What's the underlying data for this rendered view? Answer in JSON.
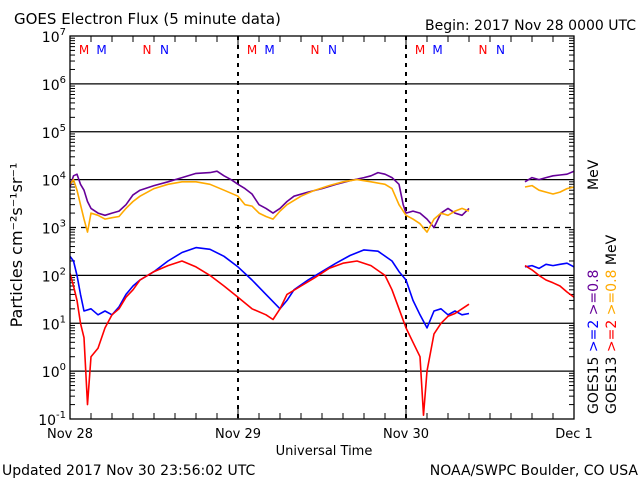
{
  "chart_data": {
    "type": "line",
    "title": "GOES Electron Flux (5 minute data)",
    "begin_label": "Begin: 2017 Nov 28 0000 UTC",
    "xlabel": "Universal Time",
    "ylabel": "Particles cm⁻²s⁻¹sr⁻¹",
    "y_scale": "log",
    "ylim": [
      0.1,
      10000000
    ],
    "xlim": [
      0,
      72
    ],
    "x_ticks": [
      {
        "hour": 0,
        "label": "Nov 28"
      },
      {
        "hour": 24,
        "label": "Nov 29"
      },
      {
        "hour": 48,
        "label": "Nov 30"
      },
      {
        "hour": 72,
        "label": "Dec 1"
      }
    ],
    "y_ticks": [
      {
        "value": 0.1,
        "base": "10",
        "exp": "-1"
      },
      {
        "value": 1,
        "base": "10",
        "exp": "0"
      },
      {
        "value": 10,
        "base": "10",
        "exp": "1"
      },
      {
        "value": 100,
        "base": "10",
        "exp": "2"
      },
      {
        "value": 1000,
        "base": "10",
        "exp": "3"
      },
      {
        "value": 10000,
        "base": "10",
        "exp": "4"
      },
      {
        "value": 100000,
        "base": "10",
        "exp": "5"
      },
      {
        "value": 1000000,
        "base": "10",
        "exp": "6"
      },
      {
        "value": 10000000,
        "base": "10",
        "exp": "7"
      }
    ],
    "reference_line": {
      "value": 1000,
      "style": "dashed"
    },
    "grid": true,
    "local_time_markers": [
      {
        "hour": 2.0,
        "label": "M",
        "color": "#ff0000"
      },
      {
        "hour": 4.5,
        "label": "M",
        "color": "#0000ff"
      },
      {
        "hour": 11.0,
        "label": "N",
        "color": "#ff0000"
      },
      {
        "hour": 13.5,
        "label": "N",
        "color": "#0000ff"
      },
      {
        "hour": 26.0,
        "label": "M",
        "color": "#ff0000"
      },
      {
        "hour": 28.5,
        "label": "M",
        "color": "#0000ff"
      },
      {
        "hour": 35.0,
        "label": "N",
        "color": "#ff0000"
      },
      {
        "hour": 37.5,
        "label": "N",
        "color": "#0000ff"
      },
      {
        "hour": 50.0,
        "label": "M",
        "color": "#ff0000"
      },
      {
        "hour": 52.5,
        "label": "M",
        "color": "#0000ff"
      },
      {
        "hour": 59.0,
        "label": "N",
        "color": "#ff0000"
      },
      {
        "hour": 61.5,
        "label": "N",
        "color": "#0000ff"
      }
    ],
    "legend": [
      {
        "satellite": "GOES15",
        "threshold": ">=2",
        "unit": "",
        "color": "#0000ff"
      },
      {
        "satellite": "GOES13",
        "threshold": ">=2",
        "unit": "",
        "color": "#ff0000"
      },
      {
        "satellite": "",
        "threshold": ">=0.8",
        "unit": "",
        "color": "#660099"
      },
      {
        "satellite": "",
        "threshold": ">=0.8",
        "unit": "MeV",
        "color": "#ffaa00"
      }
    ],
    "series": [
      {
        "color": "#660099",
        "points": [
          [
            0,
            7000
          ],
          [
            0.5,
            12000
          ],
          [
            1,
            13000
          ],
          [
            1.5,
            8000
          ],
          [
            2,
            6000
          ],
          [
            2.5,
            3500
          ],
          [
            3,
            2500
          ],
          [
            4,
            2000
          ],
          [
            5,
            1800
          ],
          [
            6,
            2000
          ],
          [
            7,
            2200
          ],
          [
            8,
            3000
          ],
          [
            9,
            4800
          ],
          [
            10,
            6000
          ],
          [
            12,
            7500
          ],
          [
            14,
            9000
          ],
          [
            16,
            11000
          ],
          [
            18,
            13500
          ],
          [
            20,
            14000
          ],
          [
            21,
            15000
          ],
          [
            22,
            12000
          ],
          [
            23,
            10000
          ],
          [
            24,
            8000
          ],
          [
            25,
            6500
          ],
          [
            26,
            5000
          ],
          [
            27,
            3000
          ],
          [
            28,
            2500
          ],
          [
            29,
            2000
          ],
          [
            30,
            2500
          ],
          [
            31,
            3500
          ],
          [
            32,
            4500
          ],
          [
            34,
            5500
          ],
          [
            36,
            6500
          ],
          [
            38,
            8000
          ],
          [
            40,
            9500
          ],
          [
            42,
            11000
          ],
          [
            43,
            12000
          ],
          [
            44,
            14000
          ],
          [
            45,
            13000
          ],
          [
            46,
            11000
          ],
          [
            47,
            8000
          ],
          [
            47.6,
            3000
          ],
          [
            48,
            2000
          ],
          [
            49,
            2200
          ],
          [
            50,
            2000
          ],
          [
            51,
            1500
          ],
          [
            52,
            1000
          ],
          [
            53,
            2000
          ],
          [
            54,
            2500
          ],
          [
            55,
            2000
          ],
          [
            56,
            1800
          ],
          [
            57,
            2500
          ]
        ],
        "points_b": [
          [
            65,
            9000
          ],
          [
            66,
            11000
          ],
          [
            67,
            10000
          ],
          [
            68,
            11000
          ],
          [
            69,
            12000
          ],
          [
            70,
            12500
          ],
          [
            71,
            13000
          ],
          [
            72,
            15000
          ]
        ]
      },
      {
        "color": "#ffaa00",
        "points": [
          [
            0,
            8000
          ],
          [
            0.5,
            10000
          ],
          [
            1,
            6000
          ],
          [
            1.5,
            3000
          ],
          [
            2,
            1500
          ],
          [
            2.5,
            800
          ],
          [
            3,
            2000
          ],
          [
            4,
            1800
          ],
          [
            5,
            1500
          ],
          [
            6,
            1600
          ],
          [
            7,
            1700
          ],
          [
            8,
            2500
          ],
          [
            9,
            3500
          ],
          [
            10,
            4500
          ],
          [
            12,
            6500
          ],
          [
            14,
            8000
          ],
          [
            16,
            9000
          ],
          [
            18,
            9000
          ],
          [
            20,
            8000
          ],
          [
            22,
            6000
          ],
          [
            24,
            4500
          ],
          [
            25,
            3000
          ],
          [
            26,
            2800
          ],
          [
            27,
            2000
          ],
          [
            28,
            1700
          ],
          [
            29,
            1500
          ],
          [
            30,
            2200
          ],
          [
            31,
            3000
          ],
          [
            33,
            4500
          ],
          [
            35,
            6000
          ],
          [
            37,
            7500
          ],
          [
            39,
            9000
          ],
          [
            41,
            10000
          ],
          [
            43,
            9000
          ],
          [
            45,
            8000
          ],
          [
            46,
            6500
          ],
          [
            47,
            3000
          ],
          [
            48,
            1800
          ],
          [
            49,
            1500
          ],
          [
            50,
            1200
          ],
          [
            51,
            800
          ],
          [
            52,
            1500
          ],
          [
            53,
            2000
          ],
          [
            54,
            1800
          ],
          [
            55,
            2200
          ],
          [
            56,
            2500
          ],
          [
            57,
            2200
          ]
        ],
        "points_b": [
          [
            65,
            7000
          ],
          [
            66,
            7500
          ],
          [
            67,
            6000
          ],
          [
            68,
            5500
          ],
          [
            69,
            5000
          ],
          [
            70,
            5500
          ],
          [
            71,
            6500
          ],
          [
            72,
            7000
          ]
        ]
      },
      {
        "color": "#0000ff",
        "points": [
          [
            0,
            250
          ],
          [
            0.5,
            200
          ],
          [
            1,
            100
          ],
          [
            1.5,
            40
          ],
          [
            2,
            18
          ],
          [
            3,
            20
          ],
          [
            4,
            15
          ],
          [
            5,
            18
          ],
          [
            6,
            15
          ],
          [
            7,
            22
          ],
          [
            8,
            40
          ],
          [
            9,
            60
          ],
          [
            10,
            80
          ],
          [
            12,
            120
          ],
          [
            14,
            200
          ],
          [
            16,
            300
          ],
          [
            18,
            380
          ],
          [
            20,
            350
          ],
          [
            22,
            250
          ],
          [
            24,
            150
          ],
          [
            26,
            80
          ],
          [
            28,
            40
          ],
          [
            30,
            20
          ],
          [
            31,
            30
          ],
          [
            32,
            50
          ],
          [
            34,
            80
          ],
          [
            36,
            120
          ],
          [
            38,
            180
          ],
          [
            40,
            260
          ],
          [
            42,
            340
          ],
          [
            44,
            320
          ],
          [
            46,
            200
          ],
          [
            47,
            120
          ],
          [
            48,
            80
          ],
          [
            49,
            30
          ],
          [
            50,
            15
          ],
          [
            51,
            8
          ],
          [
            52,
            18
          ],
          [
            53,
            20
          ],
          [
            54,
            15
          ],
          [
            55,
            18
          ],
          [
            56,
            15
          ],
          [
            57,
            16
          ]
        ],
        "points_b": [
          [
            65,
            150
          ],
          [
            66,
            160
          ],
          [
            67,
            140
          ],
          [
            68,
            170
          ],
          [
            69,
            160
          ],
          [
            70,
            170
          ],
          [
            71,
            180
          ],
          [
            72,
            150
          ]
        ]
      },
      {
        "color": "#ff0000",
        "points": [
          [
            0,
            110
          ],
          [
            0.5,
            60
          ],
          [
            1,
            30
          ],
          [
            1.5,
            10
          ],
          [
            2,
            5
          ],
          [
            2.5,
            0.2
          ],
          [
            3,
            2
          ],
          [
            4,
            3
          ],
          [
            5,
            8
          ],
          [
            6,
            15
          ],
          [
            7,
            20
          ],
          [
            8,
            35
          ],
          [
            9,
            50
          ],
          [
            10,
            80
          ],
          [
            12,
            120
          ],
          [
            14,
            160
          ],
          [
            16,
            200
          ],
          [
            18,
            150
          ],
          [
            20,
            100
          ],
          [
            22,
            60
          ],
          [
            24,
            35
          ],
          [
            26,
            20
          ],
          [
            28,
            15
          ],
          [
            29,
            12
          ],
          [
            30,
            20
          ],
          [
            31,
            40
          ],
          [
            33,
            60
          ],
          [
            35,
            90
          ],
          [
            37,
            140
          ],
          [
            39,
            180
          ],
          [
            41,
            200
          ],
          [
            43,
            160
          ],
          [
            45,
            100
          ],
          [
            46,
            50
          ],
          [
            47,
            20
          ],
          [
            48,
            8
          ],
          [
            49,
            4
          ],
          [
            50,
            2
          ],
          [
            50.5,
            0.12
          ],
          [
            51,
            1
          ],
          [
            52,
            6
          ],
          [
            53,
            10
          ],
          [
            54,
            14
          ],
          [
            55,
            16
          ],
          [
            56,
            20
          ],
          [
            57,
            25
          ]
        ],
        "points_b": [
          [
            65,
            160
          ],
          [
            66,
            130
          ],
          [
            67,
            100
          ],
          [
            68,
            80
          ],
          [
            69,
            70
          ],
          [
            70,
            60
          ],
          [
            71,
            45
          ],
          [
            72,
            35
          ]
        ]
      }
    ]
  },
  "footer": {
    "updated": "Updated 2017 Nov 30 23:56:02 UTC",
    "credit": "NOAA/SWPC Boulder, CO USA"
  }
}
